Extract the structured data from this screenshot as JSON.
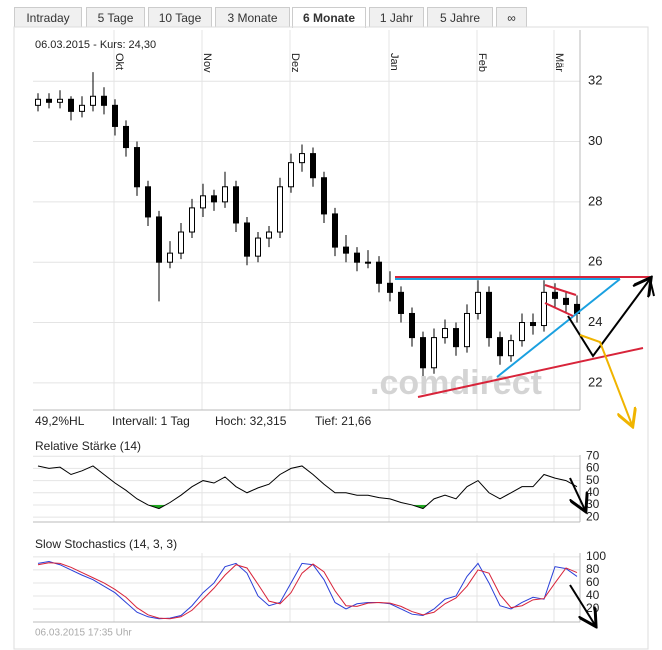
{
  "tabs": [
    "Intraday",
    "5 Tage",
    "10 Tage",
    "3 Monate",
    "6 Monate",
    "1 Jahr",
    "5 Jahre",
    "∞"
  ],
  "active_tab": "6 Monate",
  "timestamp": "06.03.2015 17:35 Uhr",
  "chart_data": [
    {
      "type": "candlestick",
      "header": "06.03.2015  -  Kurs: 24,30",
      "watermark": ".comdirect",
      "stats": [
        "49,2%HL",
        "Intervall: 1 Tag",
        "Hoch: 32,315",
        "Tief: 21,66"
      ],
      "categories": [
        null,
        null,
        null,
        null,
        null,
        null,
        null,
        "Okt",
        null,
        null,
        null,
        null,
        null,
        null,
        null,
        "Nov",
        null,
        null,
        null,
        null,
        null,
        null,
        null,
        "Dez",
        null,
        null,
        null,
        null,
        null,
        null,
        null,
        null,
        "Jan",
        null,
        null,
        null,
        null,
        null,
        null,
        null,
        "Feb",
        null,
        null,
        null,
        null,
        null,
        null,
        "Mär",
        null,
        null
      ],
      "values": [
        [
          31.2,
          31.6,
          31.0,
          31.4
        ],
        [
          31.4,
          31.6,
          31.1,
          31.3
        ],
        [
          31.3,
          31.7,
          31.1,
          31.4
        ],
        [
          31.4,
          31.5,
          30.7,
          31.0
        ],
        [
          31.0,
          31.5,
          30.8,
          31.2
        ],
        [
          31.2,
          32.3,
          31.0,
          31.5
        ],
        [
          31.5,
          31.8,
          30.9,
          31.2
        ],
        [
          31.2,
          31.4,
          30.2,
          30.5
        ],
        [
          30.5,
          30.7,
          29.5,
          29.8
        ],
        [
          29.8,
          30.0,
          28.2,
          28.5
        ],
        [
          28.5,
          28.7,
          27.2,
          27.5
        ],
        [
          27.5,
          27.7,
          24.7,
          26.0
        ],
        [
          26.0,
          26.7,
          25.8,
          26.3
        ],
        [
          26.3,
          27.3,
          26.1,
          27.0
        ],
        [
          27.0,
          28.1,
          26.8,
          27.8
        ],
        [
          27.8,
          28.6,
          27.5,
          28.2
        ],
        [
          28.2,
          28.4,
          27.7,
          28.0
        ],
        [
          28.0,
          29.0,
          27.8,
          28.5
        ],
        [
          28.5,
          28.7,
          27.0,
          27.3
        ],
        [
          27.3,
          27.5,
          25.9,
          26.2
        ],
        [
          26.2,
          27.0,
          26.0,
          26.8
        ],
        [
          26.8,
          27.2,
          26.5,
          27.0
        ],
        [
          27.0,
          28.8,
          26.8,
          28.5
        ],
        [
          28.5,
          29.6,
          28.3,
          29.3
        ],
        [
          29.3,
          29.9,
          29.0,
          29.6
        ],
        [
          29.6,
          29.8,
          28.5,
          28.8
        ],
        [
          28.8,
          29.0,
          27.3,
          27.6
        ],
        [
          27.6,
          27.8,
          26.2,
          26.5
        ],
        [
          26.5,
          26.9,
          26.0,
          26.3
        ],
        [
          26.3,
          26.5,
          25.7,
          26.0
        ],
        [
          26.0,
          26.4,
          25.8,
          26.0
        ],
        [
          26.0,
          26.2,
          25.0,
          25.3
        ],
        [
          25.3,
          25.7,
          24.7,
          25.0
        ],
        [
          25.0,
          25.2,
          24.0,
          24.3
        ],
        [
          24.3,
          24.5,
          23.2,
          23.5
        ],
        [
          23.5,
          23.7,
          21.7,
          22.5
        ],
        [
          22.5,
          23.8,
          22.3,
          23.5
        ],
        [
          23.5,
          24.1,
          23.3,
          23.8
        ],
        [
          23.8,
          24.0,
          22.9,
          23.2
        ],
        [
          23.2,
          24.6,
          23.0,
          24.3
        ],
        [
          24.3,
          25.4,
          24.1,
          25.0
        ],
        [
          25.0,
          25.2,
          23.2,
          23.5
        ],
        [
          23.5,
          23.7,
          22.6,
          22.9
        ],
        [
          22.9,
          23.6,
          22.7,
          23.4
        ],
        [
          23.4,
          24.3,
          23.2,
          24.0
        ],
        [
          24.0,
          24.3,
          23.6,
          23.9
        ],
        [
          23.9,
          25.4,
          23.7,
          25.0
        ],
        [
          25.0,
          25.3,
          24.5,
          24.8
        ],
        [
          24.8,
          25.0,
          24.3,
          24.6
        ],
        [
          24.6,
          24.9,
          24.0,
          24.3
        ]
      ],
      "color": "#000000",
      "ylim": [
        21.1,
        33.2
      ],
      "yticks": [
        22,
        24,
        26,
        28,
        30,
        32
      ],
      "grid": true
    },
    {
      "type": "line",
      "title": "Relative Stärke (14)",
      "series": [
        {
          "color": "#000000",
          "values": [
            62,
            60,
            61,
            55,
            58,
            62,
            55,
            48,
            42,
            35,
            30,
            27,
            32,
            38,
            45,
            50,
            48,
            53,
            45,
            40,
            44,
            47,
            55,
            60,
            62,
            55,
            47,
            40,
            40,
            38,
            38,
            36,
            35,
            32,
            30,
            27,
            35,
            38,
            35,
            45,
            50,
            40,
            35,
            40,
            45,
            45,
            55,
            52,
            50,
            45
          ]
        }
      ],
      "fill_below": 30,
      "fill_color": "#1fa81f",
      "ylim": [
        16,
        71
      ],
      "yticks": [
        20,
        30,
        40,
        50,
        60,
        70
      ],
      "grid": true
    },
    {
      "type": "line",
      "title": "Slow Stochastics (14, 3, 3)",
      "series": [
        {
          "color": "#2a3fd8",
          "values": [
            90,
            93,
            88,
            80,
            72,
            65,
            55,
            45,
            30,
            15,
            8,
            5,
            6,
            10,
            25,
            45,
            60,
            85,
            90,
            75,
            40,
            25,
            30,
            60,
            90,
            88,
            65,
            30,
            20,
            28,
            30,
            30,
            28,
            20,
            12,
            10,
            20,
            35,
            40,
            70,
            90,
            60,
            25,
            20,
            30,
            38,
            35,
            85,
            82,
            70
          ]
        },
        {
          "color": "#d8243a",
          "values": [
            88,
            91,
            90,
            84,
            76,
            68,
            60,
            50,
            38,
            22,
            11,
            6,
            5,
            8,
            18,
            35,
            52,
            72,
            88,
            83,
            58,
            32,
            28,
            45,
            75,
            89,
            77,
            48,
            25,
            24,
            29,
            30,
            29,
            24,
            16,
            11,
            15,
            28,
            37,
            55,
            80,
            75,
            42,
            22,
            25,
            34,
            36,
            60,
            83,
            76
          ]
        }
      ],
      "ylim": [
        0,
        106
      ],
      "yticks": [
        20,
        40,
        60,
        80,
        100
      ],
      "grid": true
    }
  ]
}
